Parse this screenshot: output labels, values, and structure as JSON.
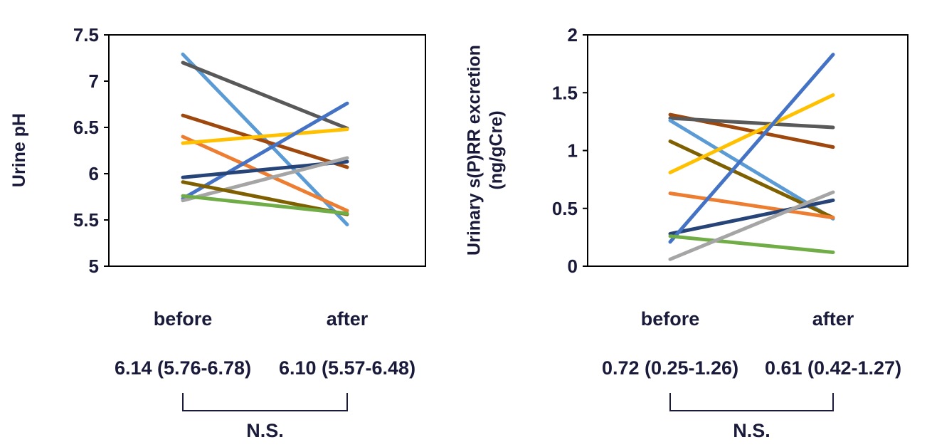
{
  "chart_data": [
    {
      "type": "line",
      "ylabel": "Urine pH",
      "categories": [
        "before",
        "after"
      ],
      "ylim": [
        5,
        7.5
      ],
      "yticks": [
        "5",
        "5.5",
        "6",
        "6.5",
        "7",
        "7.5"
      ],
      "grid": false,
      "legend": "none",
      "series": [
        {
          "color": "#5b9bd5",
          "values": [
            7.29,
            5.45
          ]
        },
        {
          "color": "#595959",
          "values": [
            7.2,
            6.49
          ]
        },
        {
          "color": "#9e480e",
          "values": [
            6.63,
            6.07
          ]
        },
        {
          "color": "#ed7d31",
          "values": [
            6.4,
            5.6
          ]
        },
        {
          "color": "#ffc000",
          "values": [
            6.33,
            6.48
          ]
        },
        {
          "color": "#4472c4",
          "values": [
            5.73,
            6.76
          ]
        },
        {
          "color": "#264478",
          "values": [
            5.96,
            6.13
          ]
        },
        {
          "color": "#a5a5a5",
          "values": [
            5.71,
            6.17
          ]
        },
        {
          "color": "#7f6000",
          "values": [
            5.91,
            5.56
          ]
        },
        {
          "color": "#70ad47",
          "values": [
            5.76,
            5.57
          ]
        }
      ],
      "summary": {
        "before": "6.14 (5.76-6.78)",
        "after": "6.10 (5.57-6.48)"
      },
      "significance": "N.S."
    },
    {
      "type": "line",
      "ylabel": "Urinary s(P)RR excretion (ng/gCre)",
      "ylabel_lines": [
        "Urinary s(P)RR excretion",
        "(ng/gCre)"
      ],
      "categories": [
        "before",
        "after"
      ],
      "ylim": [
        0,
        2
      ],
      "yticks": [
        "0",
        "0.5",
        "1",
        "1.5",
        "2"
      ],
      "grid": false,
      "legend": "none",
      "series": [
        {
          "color": "#9e480e",
          "values": [
            1.31,
            1.03
          ]
        },
        {
          "color": "#595959",
          "values": [
            1.28,
            1.2
          ]
        },
        {
          "color": "#5b9bd5",
          "values": [
            1.26,
            0.41
          ]
        },
        {
          "color": "#7f6000",
          "values": [
            1.08,
            0.42
          ]
        },
        {
          "color": "#ffc000",
          "values": [
            0.81,
            1.48
          ]
        },
        {
          "color": "#ed7d31",
          "values": [
            0.63,
            0.42
          ]
        },
        {
          "color": "#264478",
          "values": [
            0.28,
            0.57
          ]
        },
        {
          "color": "#4472c4",
          "values": [
            0.21,
            1.83
          ]
        },
        {
          "color": "#70ad47",
          "values": [
            0.26,
            0.12
          ]
        },
        {
          "color": "#a5a5a5",
          "values": [
            0.06,
            0.64
          ]
        }
      ],
      "summary": {
        "before": "0.72 (0.25-1.26)",
        "after": "0.61 (0.42-1.27)"
      },
      "significance": "N.S."
    }
  ]
}
